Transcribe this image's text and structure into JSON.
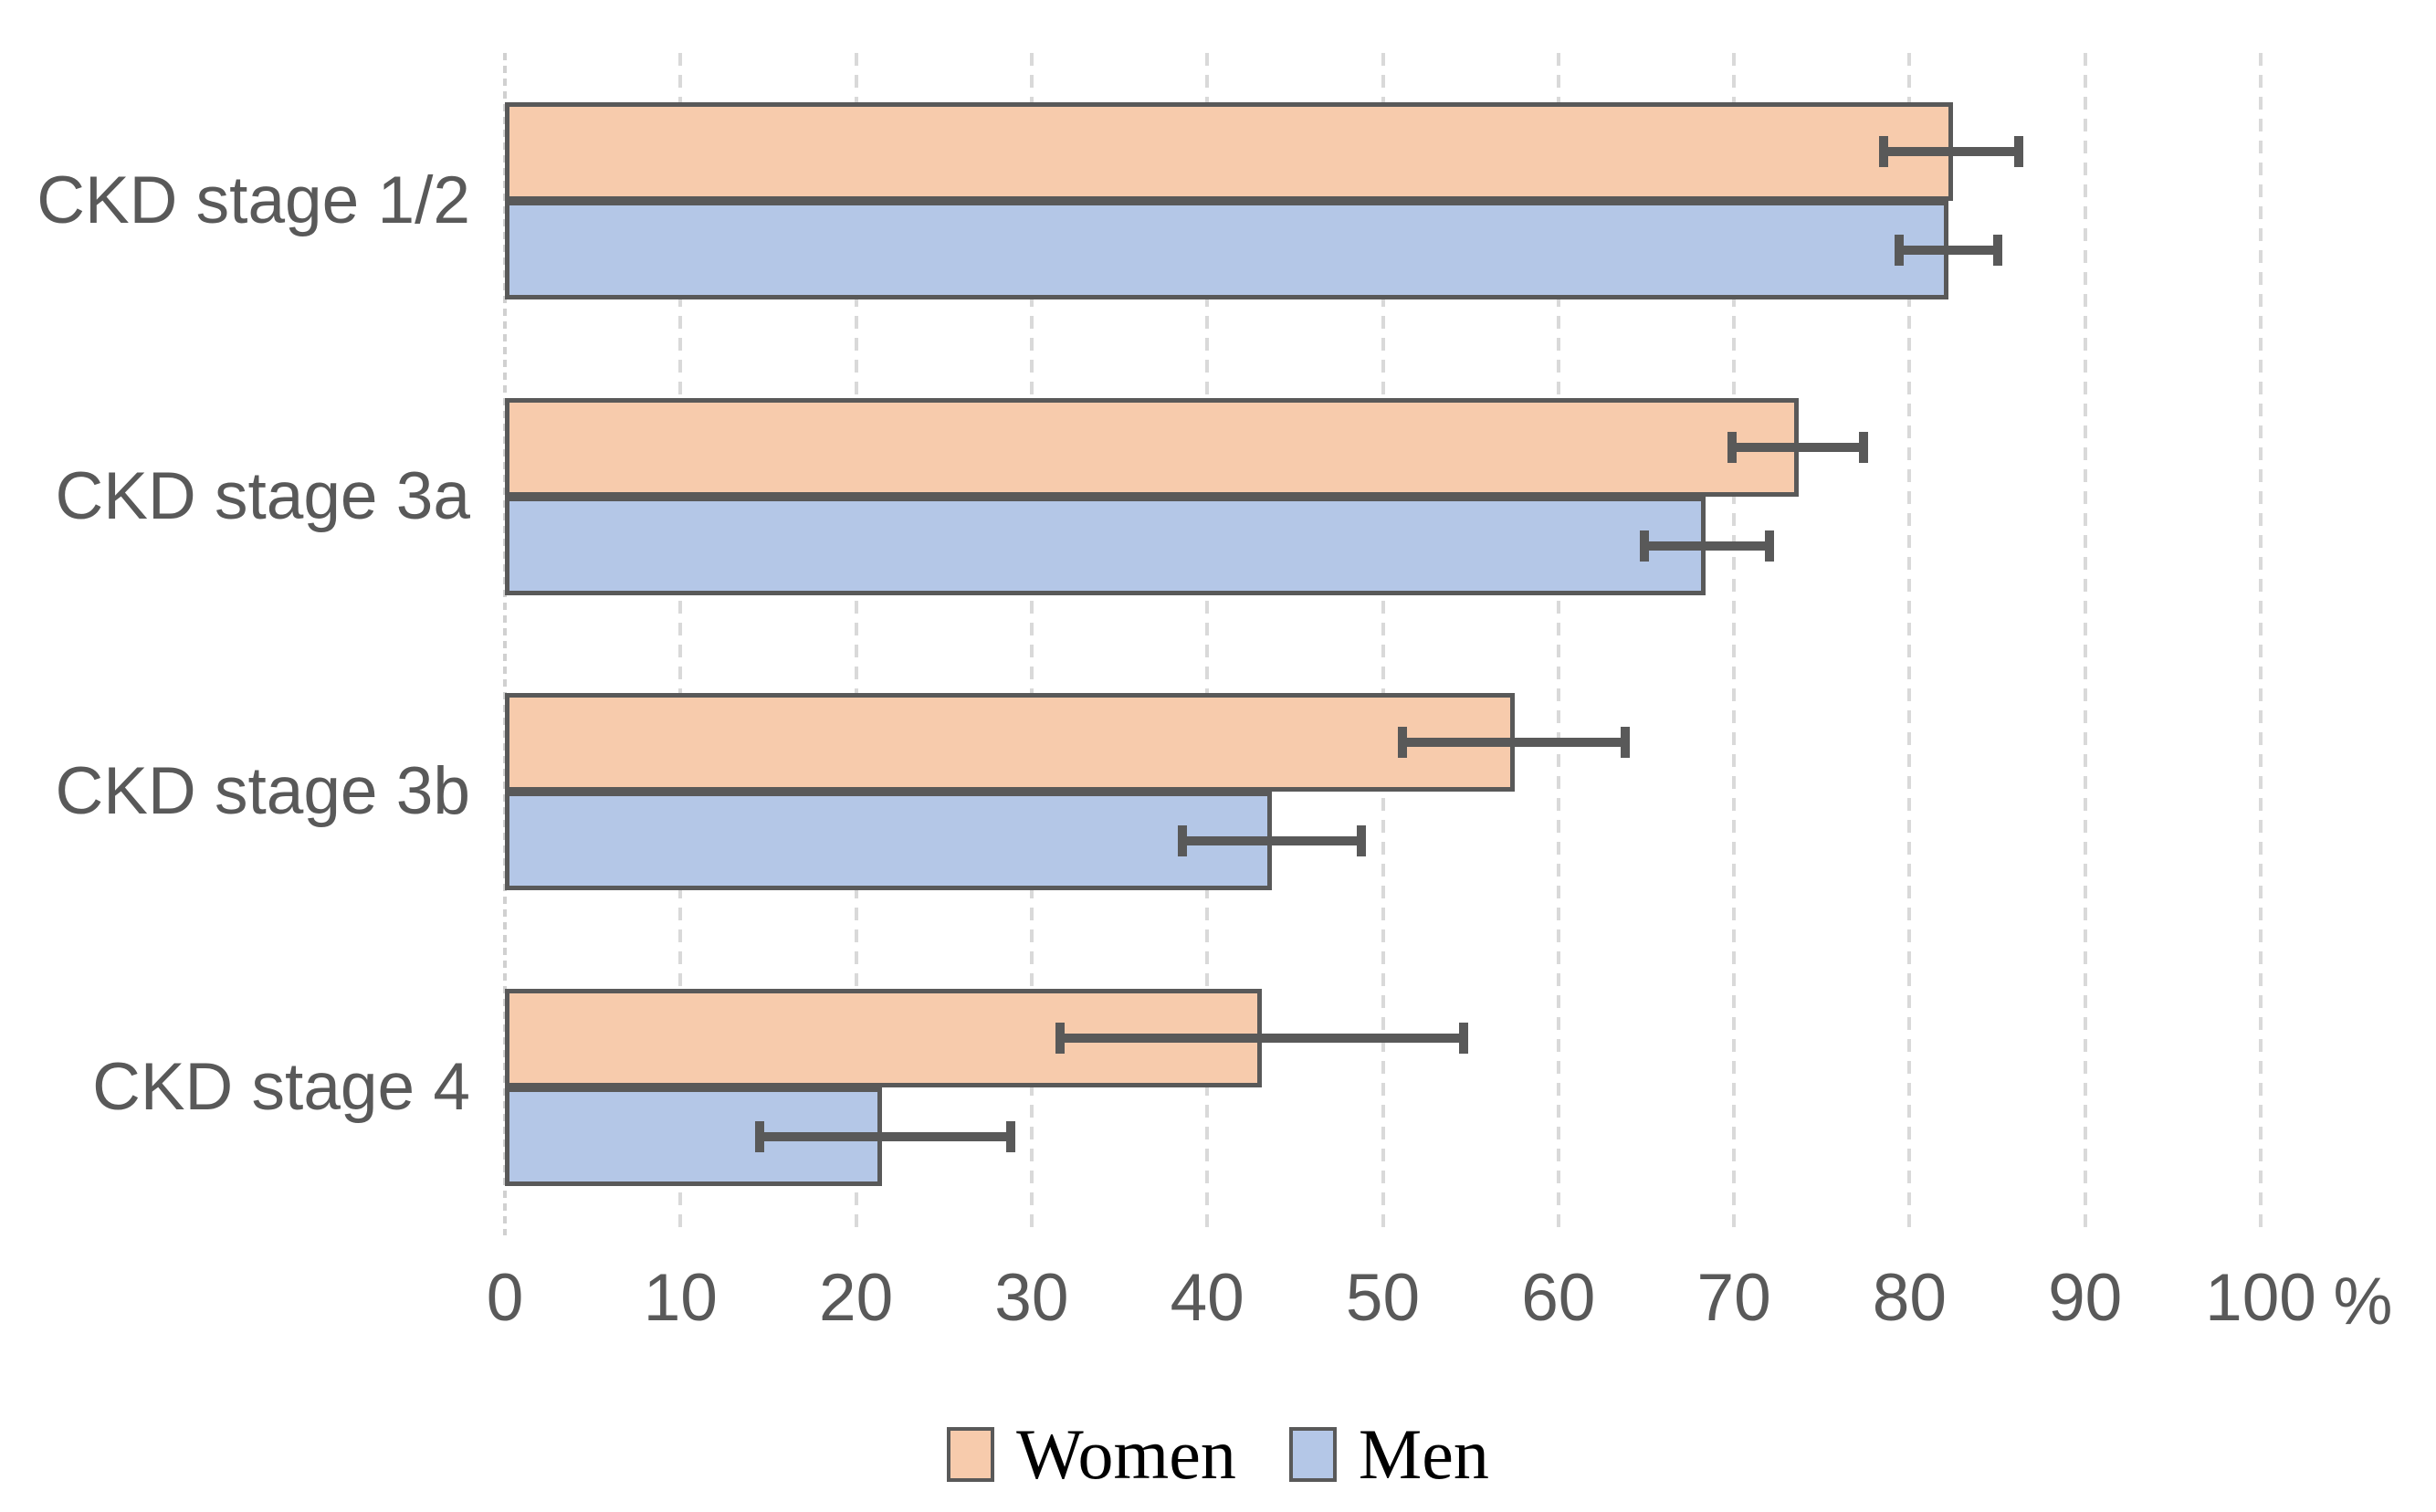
{
  "chart_data": {
    "type": "bar",
    "orientation": "horizontal",
    "title": "",
    "categories": [
      "CKD stage 1/2",
      "CKD stage 3a",
      "CKD stage 3b",
      "CKD stage 4"
    ],
    "series": [
      {
        "name": "Women",
        "color": "#F7CBAC",
        "values": [
          82.5,
          73.7,
          57.5,
          43.1
        ],
        "error_low": [
          78.5,
          69.9,
          51.1,
          31.6
        ],
        "error_high": [
          86.2,
          77.4,
          63.8,
          54.6
        ]
      },
      {
        "name": "Men",
        "color": "#B4C7E7",
        "values": [
          82.2,
          68.4,
          43.7,
          21.5
        ],
        "error_low": [
          79.4,
          64.9,
          38.6,
          14.5
        ],
        "error_high": [
          85.0,
          72.0,
          48.8,
          28.8
        ]
      }
    ],
    "x_axis": {
      "min": 0,
      "max": 100,
      "tick_step": 10,
      "tick_labels": [
        "0",
        "10",
        "20",
        "30",
        "40",
        "50",
        "60",
        "70",
        "80",
        "90",
        "100"
      ],
      "unit_label": "%"
    },
    "grid": true,
    "legend_position": "bottom",
    "legend": [
      "Women",
      "Men"
    ],
    "error_bars": true
  },
  "colors": {
    "women_fill": "#F7CBAC",
    "men_fill": "#B4C7E7",
    "bar_border": "#595959",
    "error_bar": "#595959",
    "gridline": "#D9D9D9",
    "text": "#595959",
    "background": "#FFFFFF"
  }
}
